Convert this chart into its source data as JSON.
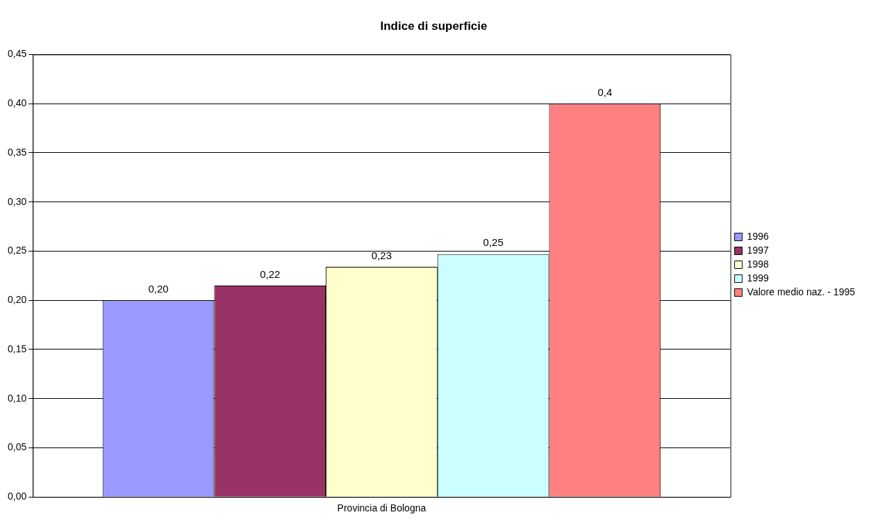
{
  "chart_data": {
    "type": "bar",
    "title": "Indice di superficie",
    "categories": [
      "Provincia di Bologna"
    ],
    "series": [
      {
        "name": "1996",
        "color": "#9999ff",
        "values": [
          0.2
        ],
        "value_labels": [
          "0,20"
        ]
      },
      {
        "name": "1997",
        "color": "#993366",
        "values": [
          0.215
        ],
        "value_labels": [
          "0,22"
        ]
      },
      {
        "name": "1998",
        "color": "#ffffcc",
        "values": [
          0.234
        ],
        "value_labels": [
          "0,23"
        ]
      },
      {
        "name": "1999",
        "color": "#ccffff",
        "values": [
          0.247
        ],
        "value_labels": [
          "0,25"
        ]
      },
      {
        "name": "Valore medio naz. - 1995",
        "color": "#ff8080",
        "values": [
          0.4
        ],
        "value_labels": [
          "0,4"
        ]
      }
    ],
    "ylim": [
      0,
      0.45
    ],
    "yticks": [
      {
        "value": 0,
        "label": "0,00"
      },
      {
        "value": 0.05,
        "label": "0,05"
      },
      {
        "value": 0.1,
        "label": "0,10"
      },
      {
        "value": 0.15,
        "label": "0,15"
      },
      {
        "value": 0.2,
        "label": "0,20"
      },
      {
        "value": 0.25,
        "label": "0,25"
      },
      {
        "value": 0.3,
        "label": "0,30"
      },
      {
        "value": 0.35,
        "label": "0,35"
      },
      {
        "value": 0.4,
        "label": "0,40"
      },
      {
        "value": 0.45,
        "label": "0,45"
      }
    ],
    "grid": "y",
    "legend": "right"
  }
}
